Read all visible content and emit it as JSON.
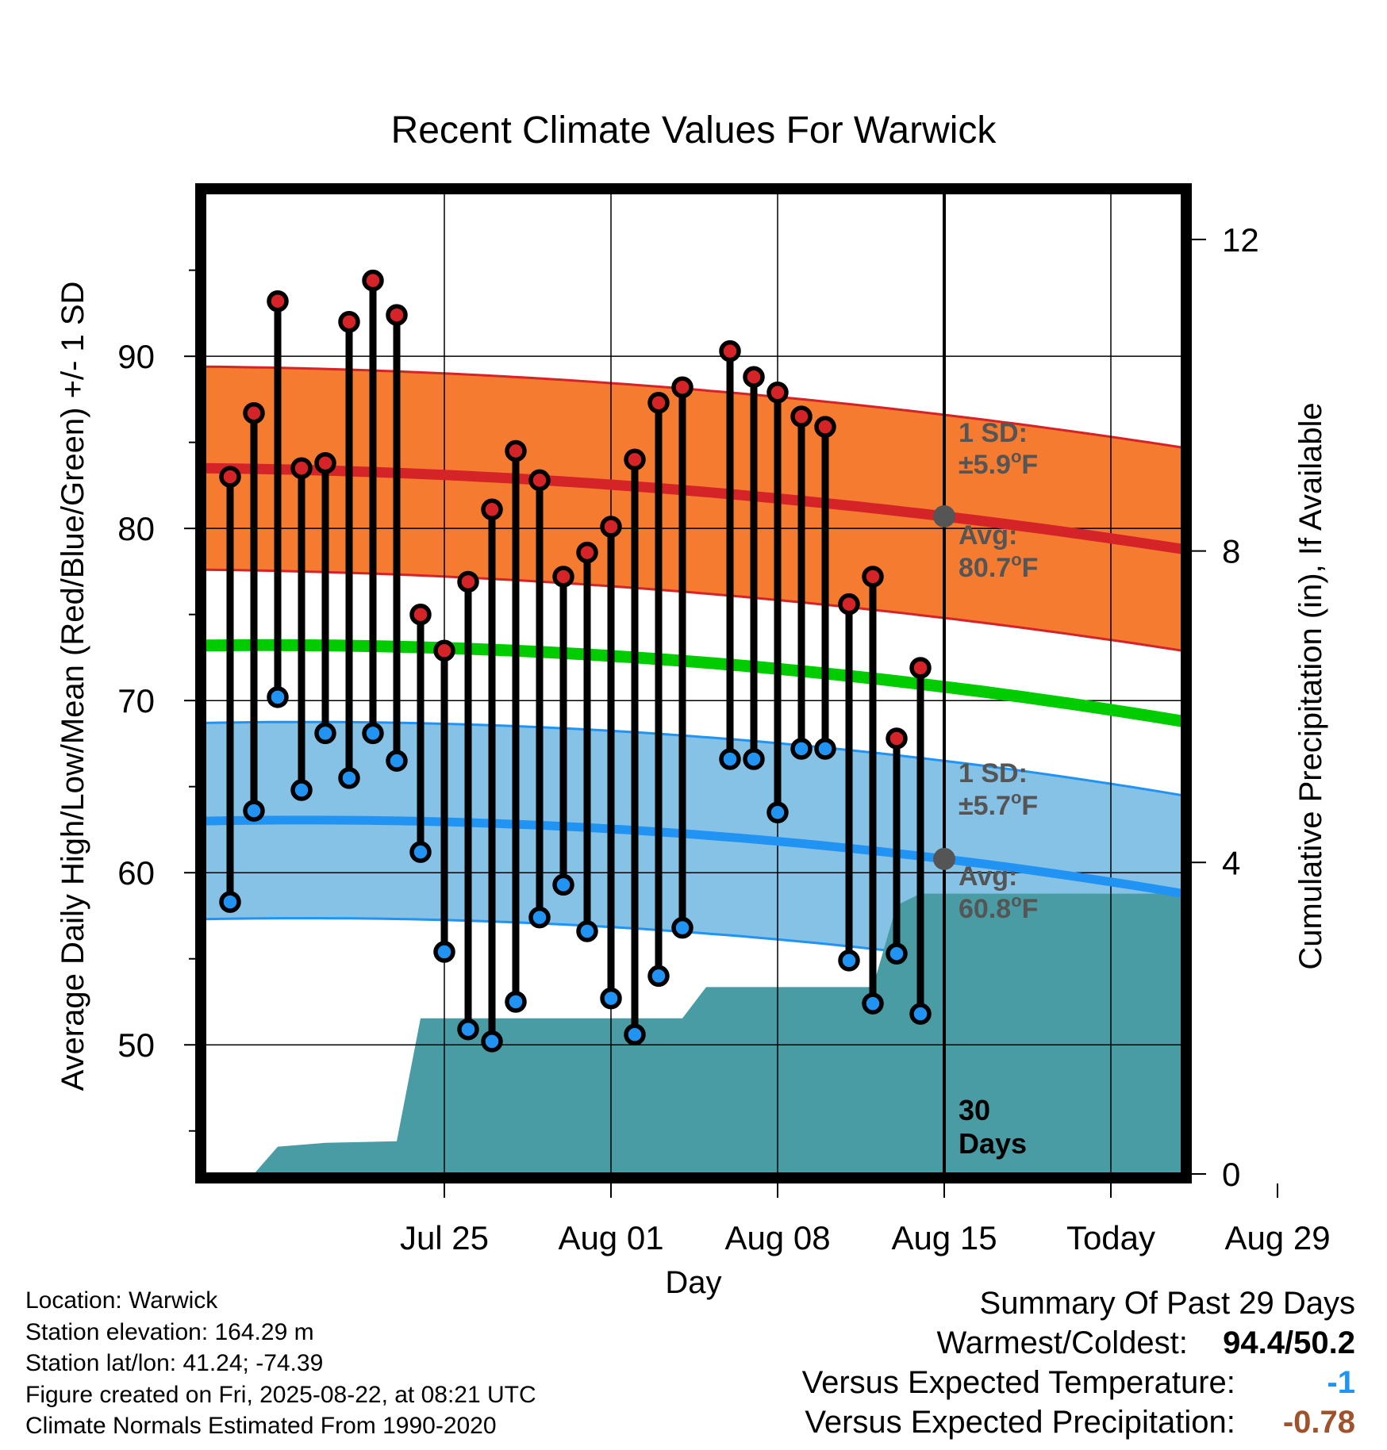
{
  "chart_data": {
    "type": "line",
    "title": "Recent Climate Values For Warwick",
    "xlabel": "Day",
    "ylabel": "Average Daily High/Low/Mean (Red/Blue/Green) +/- 1 SD",
    "y2label": "Cumulative Precipitation (in), If Available",
    "x_tick_labels": [
      "Jul 25",
      "Aug 01",
      "Aug 08",
      "Aug 15",
      "Today",
      "Aug 29"
    ],
    "x_range": [
      "Jul 22",
      "Sep 01"
    ],
    "ylim": [
      42.5,
      99.5
    ],
    "y_ticks": [
      50,
      60,
      70,
      80,
      90
    ],
    "y2lim": [
      0,
      12.6
    ],
    "y2_ticks": [
      0,
      4,
      8,
      12
    ],
    "grid": true,
    "days": [
      "Jul 23",
      "Jul 24",
      "Jul 25",
      "Jul 26",
      "Jul 27",
      "Jul 28",
      "Jul 29",
      "Jul 30",
      "Jul 31",
      "Aug 01",
      "Aug 02",
      "Aug 03",
      "Aug 04",
      "Aug 05",
      "Aug 06",
      "Aug 07",
      "Aug 08",
      "Aug 09",
      "Aug 10",
      "Aug 11",
      "Aug 12",
      "Aug 13",
      "Aug 14",
      "Aug 15",
      "Aug 16",
      "Aug 17",
      "Aug 18",
      "Aug 19",
      "Aug 20",
      "Aug 21"
    ],
    "observed_high": [
      83.0,
      86.7,
      93.2,
      83.5,
      83.8,
      92.0,
      94.4,
      92.4,
      75.0,
      72.9,
      76.9,
      81.1,
      84.5,
      82.8,
      77.2,
      78.6,
      80.1,
      84.0,
      87.3,
      88.2,
      null,
      90.3,
      88.8,
      87.9,
      86.5,
      85.9,
      75.6,
      77.2,
      67.8,
      71.9
    ],
    "observed_low": [
      58.3,
      63.6,
      70.2,
      64.8,
      68.1,
      65.5,
      68.1,
      66.5,
      61.2,
      55.4,
      50.9,
      50.2,
      52.5,
      57.4,
      59.3,
      56.6,
      52.7,
      50.6,
      54.0,
      56.8,
      null,
      66.6,
      66.6,
      63.5,
      67.2,
      67.2,
      54.9,
      52.4,
      55.3,
      51.8
    ],
    "normal_high": {
      "start": 83.5,
      "today": 80.7,
      "end": 78.8,
      "sd": 5.9
    },
    "normal_low": {
      "start": 63.0,
      "today": 60.8,
      "end": 58.8,
      "sd": 5.7
    },
    "normal_mean": {
      "start": 73.2,
      "today": 70.8,
      "end": 68.8
    },
    "cumulative_precip": [
      {
        "day": "Jul 23",
        "value": 0.0
      },
      {
        "day": "Jul 24",
        "value": 0.0
      },
      {
        "day": "Jul 25",
        "value": 0.35
      },
      {
        "day": "Jul 27",
        "value": 0.4
      },
      {
        "day": "Jul 30",
        "value": 0.42
      },
      {
        "day": "Jul 31",
        "value": 2.0
      },
      {
        "day": "Aug 11",
        "value": 2.0
      },
      {
        "day": "Aug 12",
        "value": 2.4
      },
      {
        "day": "Aug 19",
        "value": 2.4
      },
      {
        "day": "Aug 20",
        "value": 3.45
      },
      {
        "day": "Aug 21",
        "value": 3.6
      },
      {
        "day": "Aug 31",
        "value": 3.6
      }
    ],
    "annotations": {
      "high_sd_label": "1 SD:",
      "high_sd_value": "±5.9°F",
      "high_avg_label": "Avg:",
      "high_avg_value": "80.7°F",
      "low_sd_label": "1 SD:",
      "low_sd_value": "±5.7°F",
      "low_avg_label": "Avg:",
      "low_avg_value": "60.8°F",
      "days_line1": "30",
      "days_line2": "Days"
    },
    "colors": {
      "high_band": "#f47b30",
      "high_line": "#d42427",
      "low_band": "#86c1e6",
      "low_line": "#2193f2",
      "mean_line": "#00cc00",
      "precip_fill": "#4a9ca4",
      "high_dot": "#d42427",
      "low_dot": "#2193f2"
    }
  },
  "footer": {
    "location": "Location: Warwick",
    "elevation": "Station elevation: 164.29 m",
    "latlon": "Station lat/lon: 41.24; -74.39",
    "created": "Figure created on Fri, 2025-08-22, at 08:21 UTC",
    "normals": "Climate Normals Estimated From 1990-2020"
  },
  "summary": {
    "heading": "Summary Of Past 29 Days",
    "warmest_label": "Warmest/Coldest:",
    "warmest_value": "94.4/50.2",
    "temp_label": "Versus Expected Temperature:",
    "temp_value": "-1",
    "temp_color": "#2193f2",
    "precip_label": "Versus Expected Precipitation:",
    "precip_value": "-0.78",
    "precip_color": "#a0522d"
  }
}
